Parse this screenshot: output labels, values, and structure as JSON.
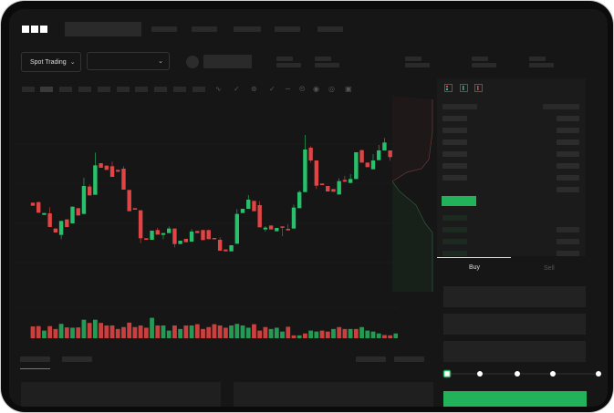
{
  "brand": {
    "logo_text": "OKX"
  },
  "toolbar": {
    "market_type": "Spot Trading",
    "pair_selector": ""
  },
  "trade_form": {
    "buy_tab": "Buy",
    "sell_tab": "Sell",
    "leverage_levels": [
      0,
      25,
      50,
      75,
      100
    ],
    "selected_level": 0
  },
  "colors": {
    "up": "#26c16a",
    "down": "#e04444",
    "background": "#161616",
    "accent": "#22b35a"
  },
  "icons": [
    "chevron-down-icon",
    "indicator-icon",
    "drawing-icon",
    "fullscreen-icon",
    "orderbook-both-icon",
    "orderbook-bids-icon",
    "orderbook-asks-icon"
  ],
  "chart_data": {
    "type": "candlestick",
    "candles": [
      [
        200,
        200,
        190,
        190
      ],
      [
        202,
        202,
        167,
        167
      ],
      [
        160,
        166,
        160,
        166
      ],
      [
        165,
        185,
        120,
        120
      ],
      [
        115,
        115,
        102,
        102
      ],
      [
        94,
        140,
        80,
        140
      ],
      [
        145,
        145,
        120,
        120
      ],
      [
        132,
        187,
        132,
        187
      ],
      [
        182,
        182,
        158,
        158
      ],
      [
        163,
        282,
        163,
        255
      ],
      [
        253,
        260,
        224,
        224
      ],
      [
        226,
        365,
        226,
        323
      ],
      [
        330,
        330,
        315,
        315
      ],
      [
        322,
        322,
        308,
        308
      ],
      [
        320,
        335,
        285,
        285
      ],
      [
        308,
        308,
        302,
        302
      ],
      [
        312,
        320,
        243,
        243
      ],
      [
        242,
        242,
        172,
        172
      ],
      [
        182,
        182,
        177,
        177
      ],
      [
        175,
        175,
        67,
        83
      ],
      [
        83,
        83,
        78,
        78
      ],
      [
        78,
        108,
        78,
        108
      ],
      [
        110,
        117,
        95,
        95
      ],
      [
        94,
        100,
        80,
        100
      ],
      [
        100,
        122,
        100,
        115
      ],
      [
        115,
        115,
        53,
        64
      ],
      [
        64,
        75,
        64,
        75
      ],
      [
        81,
        81,
        70,
        70
      ],
      [
        72,
        113,
        72,
        105
      ],
      [
        107,
        107,
        100,
        100
      ],
      [
        110,
        110,
        77,
        77
      ],
      [
        110,
        110,
        80,
        80
      ],
      [
        84,
        84,
        80,
        80
      ],
      [
        78,
        86,
        42,
        42
      ],
      [
        46,
        46,
        40,
        40
      ],
      [
        40,
        60,
        40,
        60
      ],
      [
        65,
        179,
        65,
        163
      ],
      [
        166,
        180,
        166,
        180
      ],
      [
        180,
        225,
        180,
        210
      ],
      [
        206,
        206,
        172,
        172
      ],
      [
        192,
        205,
        119,
        119
      ],
      [
        112,
        123,
        105,
        118
      ],
      [
        125,
        125,
        112,
        112
      ],
      [
        106,
        117,
        106,
        117
      ],
      [
        122,
        122,
        90,
        118
      ],
      [
        114,
        130,
        109,
        109
      ],
      [
        115,
        194,
        115,
        184
      ],
      [
        182,
        240,
        182,
        235
      ],
      [
        235,
        423,
        235,
        375
      ],
      [
        381,
        386,
        332,
        339
      ],
      [
        339,
        339,
        245,
        256
      ],
      [
        263,
        263,
        258,
        258
      ],
      [
        255,
        255,
        237,
        237
      ],
      [
        245,
        245,
        236,
        236
      ],
      [
        227,
        280,
        227,
        271
      ],
      [
        275,
        288,
        269,
        269
      ],
      [
        265,
        294,
        265,
        278
      ],
      [
        278,
        366,
        278,
        366
      ],
      [
        373,
        373,
        332,
        332
      ],
      [
        332,
        332,
        317,
        317
      ],
      [
        310,
        360,
        310,
        339
      ],
      [
        340,
        390,
        340,
        372
      ],
      [
        372,
        413,
        372,
        398
      ],
      [
        372,
        372,
        338,
        350
      ],
      [
        343,
        382,
        343,
        364
      ]
    ],
    "volume": [
      [
        37,
        "down"
      ],
      [
        38,
        "down"
      ],
      [
        24,
        "up"
      ],
      [
        38,
        "down"
      ],
      [
        29,
        "down"
      ],
      [
        45,
        "up"
      ],
      [
        34,
        "down"
      ],
      [
        33,
        "up"
      ],
      [
        34,
        "down"
      ],
      [
        58,
        "up"
      ],
      [
        48,
        "down"
      ],
      [
        58,
        "up"
      ],
      [
        48,
        "down"
      ],
      [
        40,
        "down"
      ],
      [
        40,
        "down"
      ],
      [
        29,
        "down"
      ],
      [
        35,
        "down"
      ],
      [
        49,
        "down"
      ],
      [
        35,
        "down"
      ],
      [
        40,
        "down"
      ],
      [
        33,
        "down"
      ],
      [
        64,
        "up"
      ],
      [
        40,
        "down"
      ],
      [
        40,
        "up"
      ],
      [
        24,
        "up"
      ],
      [
        40,
        "down"
      ],
      [
        29,
        "up"
      ],
      [
        40,
        "down"
      ],
      [
        40,
        "up"
      ],
      [
        44,
        "down"
      ],
      [
        29,
        "down"
      ],
      [
        35,
        "down"
      ],
      [
        44,
        "down"
      ],
      [
        40,
        "down"
      ],
      [
        33,
        "down"
      ],
      [
        40,
        "up"
      ],
      [
        45,
        "up"
      ],
      [
        40,
        "up"
      ],
      [
        33,
        "up"
      ],
      [
        44,
        "down"
      ],
      [
        24,
        "down"
      ],
      [
        35,
        "down"
      ],
      [
        29,
        "up"
      ],
      [
        33,
        "up"
      ],
      [
        21,
        "up"
      ],
      [
        36,
        "down"
      ],
      [
        9,
        "down"
      ],
      [
        9,
        "up"
      ],
      [
        15,
        "down"
      ],
      [
        24,
        "up"
      ],
      [
        21,
        "up"
      ],
      [
        24,
        "down"
      ],
      [
        21,
        "down"
      ],
      [
        29,
        "up"
      ],
      [
        35,
        "down"
      ],
      [
        29,
        "down"
      ],
      [
        29,
        "up"
      ],
      [
        29,
        "down"
      ],
      [
        35,
        "up"
      ],
      [
        24,
        "up"
      ],
      [
        21,
        "up"
      ],
      [
        15,
        "up"
      ],
      [
        10,
        "down"
      ],
      [
        9,
        "down"
      ],
      [
        15,
        "up"
      ]
    ]
  }
}
